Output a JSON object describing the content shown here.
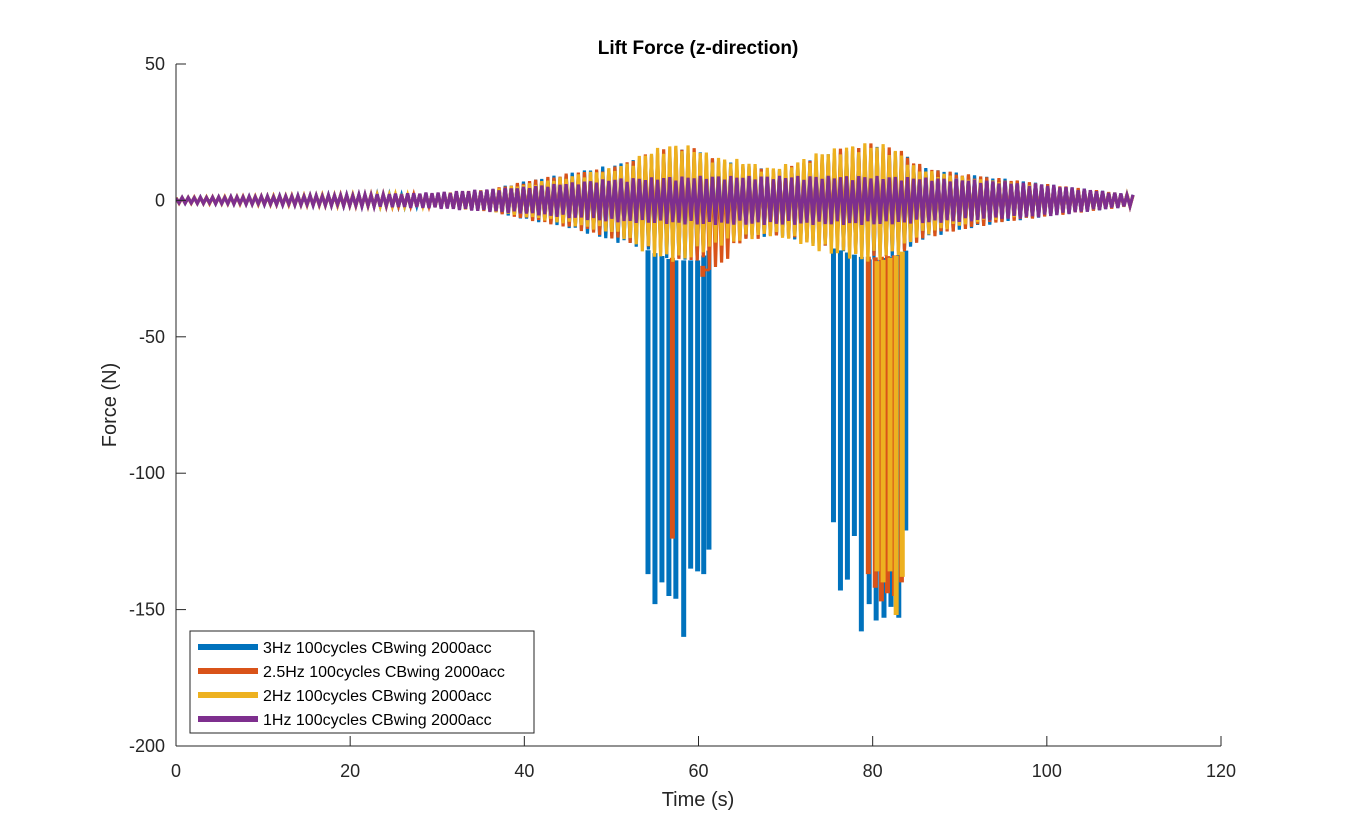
{
  "chart_data": {
    "type": "line",
    "title": "Lift Force (z-direction)",
    "xlabel": "Time (s)",
    "ylabel": "Force (N)",
    "xlim": [
      0,
      120
    ],
    "ylim": [
      -200,
      50
    ],
    "x_ticks": [
      0,
      20,
      40,
      60,
      80,
      100,
      120
    ],
    "y_ticks": [
      50,
      0,
      -50,
      -100,
      -150,
      -200
    ],
    "grid": false,
    "legend_position": "bottom-left",
    "series": [
      {
        "name": "3Hz 100cycles CBwing 2000acc",
        "color": "#0072BD",
        "time_range": [
          0,
          110
        ],
        "envelope": {
          "t": [
            0,
            10,
            20,
            30,
            36,
            40,
            45,
            50,
            54,
            57,
            60,
            62,
            65,
            69,
            72,
            76,
            80,
            83,
            86,
            90,
            95,
            100,
            105,
            110
          ],
          "upper": [
            1,
            1.5,
            2,
            2.5,
            4,
            7,
            10,
            13,
            16,
            19,
            18,
            15,
            13,
            11,
            14,
            18,
            20,
            18,
            12,
            10,
            8,
            6,
            4,
            2
          ],
          "lower": [
            -1,
            -1.5,
            -2,
            -2.5,
            -4,
            -7,
            -10,
            -15,
            -18,
            -22,
            -22,
            -16,
            -14,
            -13,
            -15,
            -18,
            -22,
            -20,
            -14,
            -11,
            -8,
            -6,
            -4,
            -2
          ]
        },
        "spikes": [
          {
            "t": 54.2,
            "y": -137
          },
          {
            "t": 55.0,
            "y": -148
          },
          {
            "t": 55.8,
            "y": -140
          },
          {
            "t": 56.6,
            "y": -145
          },
          {
            "t": 57.4,
            "y": -146
          },
          {
            "t": 58.3,
            "y": -160
          },
          {
            "t": 59.1,
            "y": -135
          },
          {
            "t": 59.9,
            "y": -136
          },
          {
            "t": 60.6,
            "y": -137
          },
          {
            "t": 61.2,
            "y": -128
          },
          {
            "t": 75.5,
            "y": -118
          },
          {
            "t": 76.3,
            "y": -143
          },
          {
            "t": 77.1,
            "y": -139
          },
          {
            "t": 77.9,
            "y": -123
          },
          {
            "t": 78.7,
            "y": -158
          },
          {
            "t": 79.6,
            "y": -148
          },
          {
            "t": 80.4,
            "y": -154
          },
          {
            "t": 81.3,
            "y": -153
          },
          {
            "t": 82.1,
            "y": -149
          },
          {
            "t": 83.0,
            "y": -153
          },
          {
            "t": 83.8,
            "y": -121
          }
        ]
      },
      {
        "name": "2.5Hz 100cycles CBwing 2000acc",
        "color": "#D95319",
        "time_range": [
          0,
          110
        ],
        "envelope": {
          "t": [
            0,
            10,
            20,
            30,
            36,
            40,
            45,
            50,
            54,
            57,
            60,
            62,
            65,
            69,
            72,
            76,
            80,
            83,
            86,
            90,
            95,
            100,
            105,
            110
          ],
          "upper": [
            1,
            1.5,
            2,
            2.5,
            4,
            7,
            10,
            12,
            17,
            20,
            19,
            15,
            13,
            11,
            14,
            19,
            21,
            19,
            12,
            10,
            8,
            6,
            4,
            2
          ],
          "lower": [
            -1,
            -1.5,
            -2,
            -2.5,
            -4,
            -7,
            -10,
            -14,
            -17,
            -21,
            -23,
            -27,
            -15,
            -13,
            -15,
            -18,
            -21,
            -20,
            -14,
            -11,
            -8,
            -6,
            -4,
            -2
          ]
        },
        "spikes": [
          {
            "t": 57.0,
            "y": -124
          },
          {
            "t": 60.5,
            "y": -28
          },
          {
            "t": 61.0,
            "y": -26
          },
          {
            "t": 79.5,
            "y": -137
          },
          {
            "t": 80.3,
            "y": -142
          },
          {
            "t": 81.0,
            "y": -147
          },
          {
            "t": 81.7,
            "y": -144
          },
          {
            "t": 82.5,
            "y": -145
          },
          {
            "t": 83.3,
            "y": -140
          }
        ]
      },
      {
        "name": "2Hz 100cycles CBwing 2000acc",
        "color": "#EDB120",
        "time_range": [
          0,
          110
        ],
        "envelope": {
          "t": [
            0,
            10,
            20,
            30,
            36,
            40,
            45,
            50,
            52,
            54,
            56,
            58,
            60,
            62,
            65,
            68,
            71,
            74,
            77,
            79,
            81,
            83,
            85,
            88,
            92,
            100,
            110
          ],
          "upper": [
            1,
            1.5,
            2,
            2.5,
            4,
            6,
            9,
            12,
            14,
            18,
            20,
            21,
            19,
            16,
            15,
            12,
            14,
            18,
            20,
            21,
            21,
            18,
            12,
            10,
            8,
            5,
            2
          ],
          "lower": [
            -1,
            -1.5,
            -2,
            -2.5,
            -4,
            -6,
            -9,
            -12,
            -15,
            -20,
            -22,
            -23,
            -20,
            -17,
            -15,
            -13,
            -15,
            -19,
            -21,
            -23,
            -22,
            -20,
            -14,
            -11,
            -8,
            -5,
            -2
          ]
        },
        "spikes": [
          {
            "t": 80.5,
            "y": -136
          },
          {
            "t": 81.2,
            "y": -140
          },
          {
            "t": 82.0,
            "y": -136
          },
          {
            "t": 82.7,
            "y": -152
          },
          {
            "t": 83.4,
            "y": -138
          }
        ]
      },
      {
        "name": "1Hz 100cycles CBwing 2000acc",
        "color": "#7E2F8E",
        "time_range": [
          0,
          110
        ],
        "envelope": {
          "t": [
            0,
            10,
            20,
            30,
            40,
            50,
            60,
            70,
            80,
            90,
            95,
            100,
            105,
            110
          ],
          "upper": [
            1,
            1.5,
            2,
            3,
            5,
            8,
            9,
            9,
            9,
            8,
            7,
            6,
            4,
            2
          ],
          "lower": [
            -1,
            -1.5,
            -2,
            -3,
            -5,
            -8,
            -9,
            -9,
            -9,
            -8,
            -7,
            -6,
            -4,
            -2
          ]
        },
        "spikes": []
      }
    ]
  }
}
